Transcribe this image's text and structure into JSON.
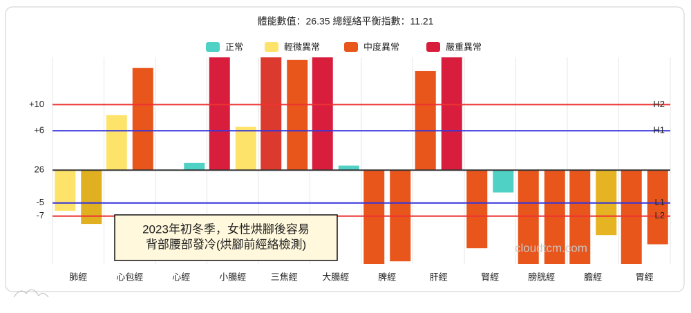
{
  "chart_data": {
    "type": "bar",
    "title": "體能數值：26.35 總經絡平衡指數：11.21",
    "legend": [
      {
        "name": "正常",
        "color": "#4fd1c5"
      },
      {
        "name": "輕微異常",
        "color": "#fde36a"
      },
      {
        "name": "中度異常",
        "color": "#e8561c"
      },
      {
        "name": "嚴重異常",
        "color": "#d81e3c"
      }
    ],
    "categories": [
      "肺經",
      "心包經",
      "心經",
      "小腸經",
      "三焦經",
      "大腸經",
      "脾經",
      "肝經",
      "腎經",
      "膀胱經",
      "膽經",
      "胃經"
    ],
    "series": [
      {
        "values": [
          -6.2,
          8.4,
          0.1,
          17.2,
          17.2,
          17.2,
          -14.3,
          15.1,
          -11.9,
          -14.3,
          -14.3,
          -14.3
        ],
        "colors": [
          "#fde36a",
          "#fde36a",
          "#4fd1c5",
          "#d81e3c",
          "#dc3a2e",
          "#d81e3c",
          "#e8561c",
          "#e8561c",
          "#e8561c",
          "#e8561c",
          "#e8561c",
          "#e8561c"
        ]
      },
      {
        "values": [
          -8.2,
          15.6,
          1.1,
          6.6,
          16.8,
          0.7,
          -13.9,
          17.2,
          -3.4,
          -14.3,
          -9.9,
          -11.3
        ],
        "colors": [
          "#e0b020",
          "#e8561c",
          "#4fd1c5",
          "#fde36a",
          "#e8561c",
          "#4fd1c5",
          "#e8561c",
          "#d81e3c",
          "#4fd1c5",
          "#e8561c",
          "#e6b422",
          "#e8561c"
        ]
      }
    ],
    "ylim": [
      -14.3,
      17.2
    ],
    "yticks": [
      {
        "value": 10,
        "label": "+10"
      },
      {
        "value": 6,
        "label": "+6"
      },
      {
        "value": 0,
        "label": "26"
      },
      {
        "value": -5,
        "label": "-5"
      },
      {
        "value": -7,
        "label": "-7"
      }
    ],
    "lines": [
      {
        "value": 0,
        "color": "#333333"
      },
      {
        "value": 10,
        "label": "H2",
        "color": "#ee3333"
      },
      {
        "value": 6,
        "label": "H1",
        "color": "#3333dd"
      },
      {
        "value": -5,
        "label": "L1",
        "color": "#3333dd"
      },
      {
        "value": -7,
        "label": "L2",
        "color": "#ee3333"
      }
    ],
    "annotation": [
      "2023年初冬季，女性烘腳後容易",
      "背部腰部發冷(烘腳前經絡檢測)"
    ],
    "watermark": "cloudtcm.com"
  }
}
